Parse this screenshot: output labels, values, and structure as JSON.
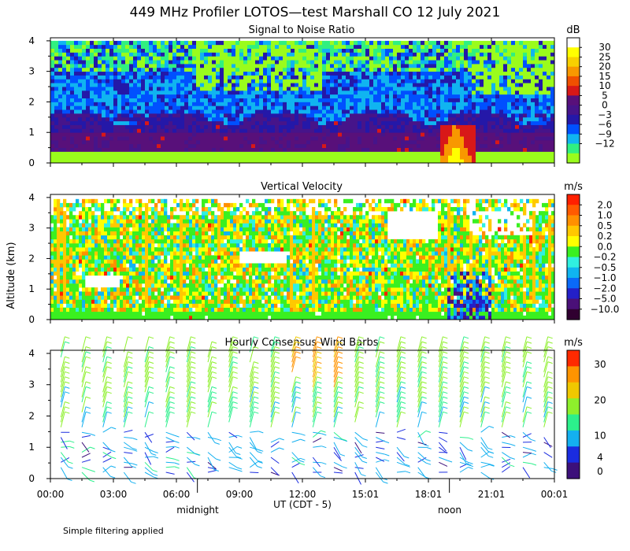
{
  "title": "449 MHz Profiler LOTOS—test Marshall CO 12 July 2021",
  "y_axis_label": "Altitude (km)",
  "x_axis_label": "UT (CDT - 5)",
  "footnote": "Simple filtering applied",
  "time_markers": {
    "midnight": "midnight",
    "noon": "noon"
  },
  "palette": {
    "snr": [
      "#9afc1c",
      "#30f080",
      "#10b4f0",
      "#0050ff",
      "#2418a8",
      "#46148a",
      "#58107a",
      "#d81818",
      "#f05000",
      "#f89800",
      "#f8d000",
      "#ffff00",
      "#ffffff"
    ],
    "vel": [
      "#300030",
      "#4a1078",
      "#2420c8",
      "#0a6af8",
      "#10b4f0",
      "#30f0e0",
      "#3af020",
      "#ffff00",
      "#ffc800",
      "#ff9000",
      "#ff5a00",
      "#ff2000"
    ],
    "wind": [
      "#3c107a",
      "#1a2ce0",
      "#14b0f0",
      "#2cf08c",
      "#8ef02c",
      "#f0c800",
      "#ff9400",
      "#ff2a00"
    ]
  },
  "chart_data": [
    {
      "type": "heatmap",
      "title": "Signal to Noise Ratio",
      "colorbar_unit": "dB",
      "colorbar_labels": [
        "30",
        "25",
        "20",
        "15",
        "10",
        "5",
        "0",
        "−3",
        "−6",
        "−9",
        "−12"
      ],
      "colorbar_values": [
        30,
        25,
        20,
        15,
        10,
        5,
        0,
        -3,
        -6,
        -9,
        -12
      ],
      "x_tick_labels": [
        "00:00",
        "03:00",
        "06:00",
        "09:00",
        "12:00",
        "15:01",
        "18:01",
        "21:01",
        "00:01"
      ],
      "x_hours": [
        0,
        3,
        6,
        9,
        12,
        15,
        18,
        21,
        24
      ],
      "y_tick_labels": [
        "0",
        "1",
        "2",
        "3",
        "4"
      ],
      "ylim": [
        0,
        4.1
      ],
      "xlim": [
        0,
        24
      ]
    },
    {
      "type": "heatmap",
      "title": "Vertical Velocity",
      "colorbar_unit": "m/s",
      "colorbar_labels": [
        "2.0",
        "1.0",
        "0.5",
        "0.2",
        "0.0",
        "−0.2",
        "−0.5",
        "−1.0",
        "−2.0",
        "−5.0",
        "−10.0"
      ],
      "colorbar_values": [
        2.0,
        1.0,
        0.5,
        0.2,
        0.0,
        -0.2,
        -0.5,
        -1.0,
        -2.0,
        -5.0,
        -10.0
      ],
      "x_tick_labels": [
        "00:00",
        "03:00",
        "06:00",
        "09:00",
        "12:00",
        "15:01",
        "18:01",
        "21:01",
        "00:01"
      ],
      "y_tick_labels": [
        "0",
        "1",
        "2",
        "3",
        "4"
      ],
      "ylim": [
        0,
        4.1
      ],
      "xlim": [
        0,
        24
      ]
    },
    {
      "type": "wind_barbs",
      "title": "Hourly Consensus Wind Barbs",
      "colorbar_unit": "m/s",
      "colorbar_labels": [
        "30",
        "20",
        "10",
        "4",
        "0"
      ],
      "colorbar_values": [
        30,
        20,
        10,
        4,
        0
      ],
      "x_tick_labels": [
        "00:00",
        "03:00",
        "06:00",
        "09:00",
        "12:00",
        "15:01",
        "18:01",
        "21:01",
        "00:01"
      ],
      "y_tick_labels": [
        "0",
        "1",
        "2",
        "3",
        "4"
      ],
      "ylim": [
        0,
        4.1
      ],
      "xlim": [
        0,
        24
      ]
    }
  ]
}
